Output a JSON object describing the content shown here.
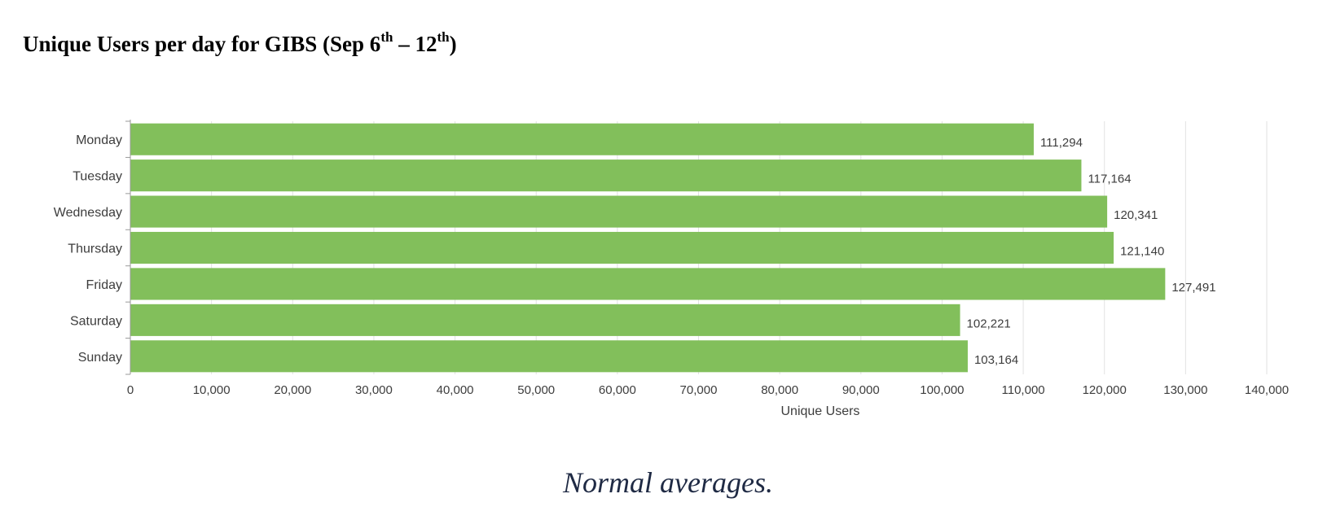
{
  "title": {
    "prefix": "Unique Users per day for GIBS (Sep 6",
    "sup1": "th",
    "middle": " – 12",
    "sup2": "th",
    "suffix": ")"
  },
  "caption": "Normal averages.",
  "chart_data": {
    "type": "bar",
    "orientation": "horizontal",
    "categories": [
      "Monday",
      "Tuesday",
      "Wednesday",
      "Thursday",
      "Friday",
      "Saturday",
      "Sunday"
    ],
    "values": [
      111294,
      117164,
      120341,
      121140,
      127491,
      102221,
      103164
    ],
    "value_labels": [
      "111,294",
      "117,164",
      "120,341",
      "121,140",
      "127,491",
      "102,221",
      "103,164"
    ],
    "xlabel": "Unique Users",
    "ylabel": "",
    "xlim": [
      0,
      140000
    ],
    "x_ticks": [
      0,
      10000,
      20000,
      30000,
      40000,
      50000,
      60000,
      70000,
      80000,
      90000,
      100000,
      110000,
      120000,
      130000,
      140000
    ],
    "x_tick_labels": [
      "0",
      "10,000",
      "20,000",
      "30,000",
      "40,000",
      "50,000",
      "60,000",
      "70,000",
      "80,000",
      "90,000",
      "100,000",
      "110,000",
      "120,000",
      "130,000",
      "140,000"
    ],
    "grid": true,
    "bar_color": "#82bf5b",
    "grid_color": "#e2e2e2",
    "text_color": "#3d3d3d"
  }
}
